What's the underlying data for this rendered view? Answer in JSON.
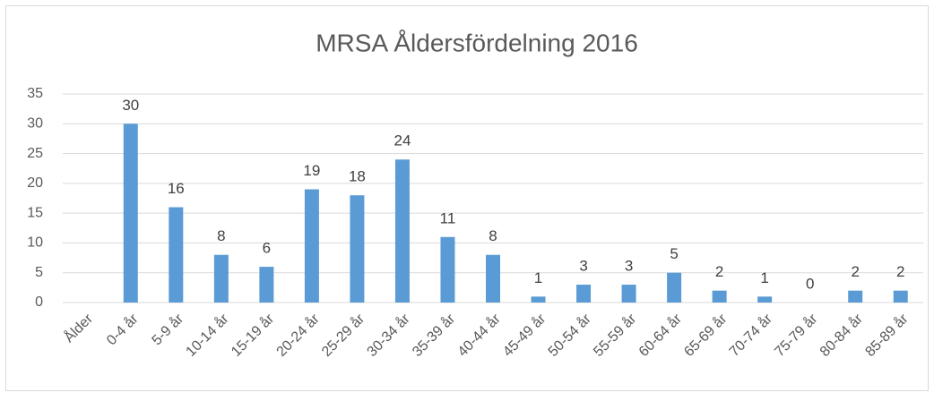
{
  "chart_data": {
    "type": "bar",
    "title": "MRSA Åldersfördelning 2016",
    "categories": [
      "Ålder",
      "0-4 år",
      "5-9 år",
      "10-14 år",
      "15-19 år",
      "20-24 år",
      "25-29 år",
      "30-34 år",
      "35-39 år",
      "40-44 år",
      "45-49 år",
      "50-54 år",
      "55-59 år",
      "60-64 år",
      "65-69 år",
      "70-74 år",
      "75-79 år",
      "80-84 år",
      "85-89 år"
    ],
    "values": [
      null,
      30,
      16,
      8,
      6,
      19,
      18,
      24,
      11,
      8,
      1,
      3,
      3,
      5,
      2,
      1,
      0,
      2,
      2
    ],
    "color": "#5b9bd5",
    "ylim": [
      0,
      35
    ],
    "yticks": [
      0,
      5,
      10,
      15,
      20,
      25,
      30,
      35
    ],
    "grid": true
  }
}
